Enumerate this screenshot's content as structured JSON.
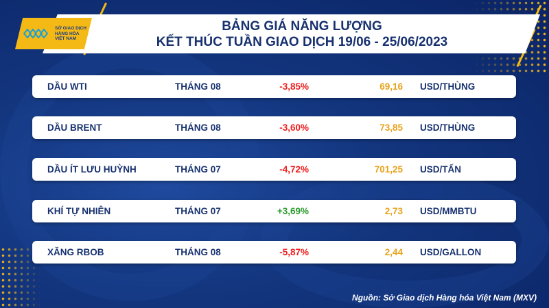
{
  "logo": {
    "text_lines": [
      "SỞ GIAO DỊCH",
      "HÀNG HÓA",
      "VIỆT NAM"
    ]
  },
  "header": {
    "title": "BẢNG GIÁ NĂNG LƯỢNG",
    "subtitle": "KẾT THÚC TUẦN GIAO DỊCH 19/06 - 25/06/2023"
  },
  "colors": {
    "navy": "#17316f",
    "negative": "#ee1c1c",
    "positive": "#2a9a2a",
    "price": "#e8a21a",
    "accent": "#f5b915"
  },
  "rows": [
    {
      "name": "DẦU WTI",
      "month": "THÁNG 08",
      "change": "-3,85%",
      "price": "69,16",
      "unit": "USD/THÙNG"
    },
    {
      "name": "DẦU BRENT",
      "month": "THÁNG 08",
      "change": "-3,60%",
      "price": "73,85",
      "unit": "USD/THÙNG"
    },
    {
      "name": "DẦU ÍT LƯU HUỲNH",
      "month": "THÁNG 07",
      "change": "-4,72%",
      "price": "701,25",
      "unit": "USD/TẤN"
    },
    {
      "name": "KHÍ TỰ NHIÊN",
      "month": "THÁNG 07",
      "change": "+3,69%",
      "price": "2,73",
      "unit": "USD/MMBTU"
    },
    {
      "name": "XĂNG RBOB",
      "month": "THÁNG 08",
      "change": "-5,87%",
      "price": "2,44",
      "unit": "USD/GALLON"
    }
  ],
  "footer": {
    "source": "Nguồn: Sở Giao dịch Hàng hóa Việt Nam (MXV)"
  }
}
